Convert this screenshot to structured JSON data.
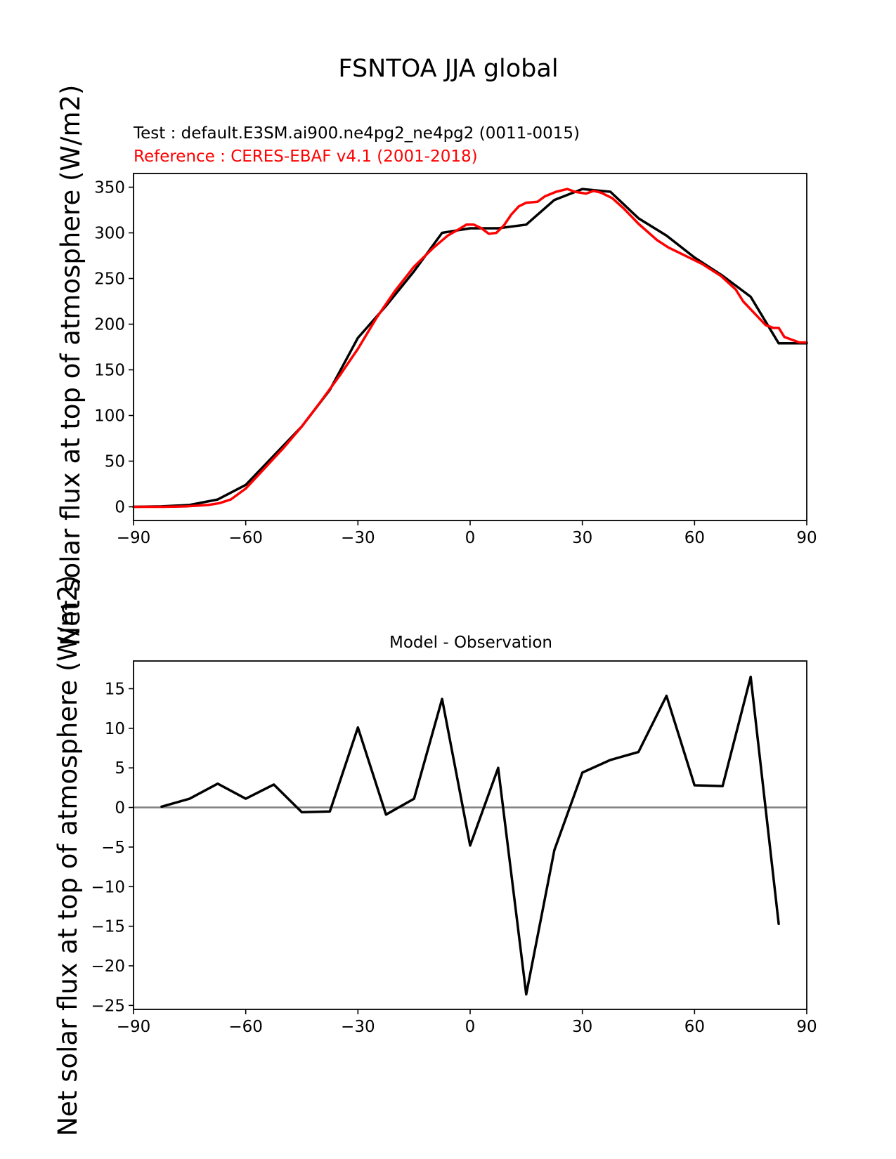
{
  "figure": {
    "title": "FSNTOA JJA global",
    "test_label": "Test : default.E3SM.ai900.ne4pg2_ne4pg2 (0011-0015)",
    "reference_label": "Reference : CERES-EBAF v4.1 (2001-2018)",
    "ylabel": "Net solar flux at top of atmosphere (W/m2)",
    "colors": {
      "test": "#000000",
      "reference": "#ff0000",
      "zero_line": "#808080"
    }
  },
  "chart_data": [
    {
      "type": "line",
      "title": "",
      "xlabel": "",
      "ylabel": "Net solar flux at top of atmosphere (W/m2)",
      "xlim": [
        -90,
        90
      ],
      "ylim": [
        -15,
        365
      ],
      "xticks": [
        "−90",
        "−60",
        "−30",
        "0",
        "30",
        "60",
        "90"
      ],
      "xtick_values": [
        -90,
        -60,
        -30,
        0,
        30,
        60,
        90
      ],
      "yticks": [
        "0",
        "50",
        "100",
        "150",
        "200",
        "250",
        "300",
        "350"
      ],
      "ytick_values": [
        0,
        50,
        100,
        150,
        200,
        250,
        300,
        350
      ],
      "series": [
        {
          "name": "Test : default.E3SM.ai900.ne4pg2_ne4pg2 (0011-0015)",
          "color": "#000000",
          "x": [
            -90,
            -82.5,
            -75,
            -67.5,
            -60,
            -52.5,
            -45,
            -37.5,
            -30,
            -22.5,
            -15,
            -7.5,
            0,
            7.5,
            15,
            22.5,
            30,
            37.5,
            45,
            52.5,
            60,
            67.5,
            75,
            82.5,
            90
          ],
          "y": [
            0,
            0.5,
            2,
            8,
            24,
            56,
            88,
            128,
            185,
            220,
            258,
            300,
            305,
            305,
            309,
            336,
            348,
            345,
            316,
            297,
            273,
            253,
            230,
            179,
            179
          ]
        },
        {
          "name": "Reference : CERES-EBAF v4.1 (2001-2018)",
          "color": "#ff0000",
          "x": [
            -90,
            -82,
            -76,
            -70,
            -67,
            -64,
            -60,
            -55,
            -50,
            -45,
            -40,
            -35,
            -30,
            -25,
            -20,
            -15,
            -10,
            -6,
            -3,
            -1,
            1,
            3,
            5,
            7,
            9,
            11,
            13,
            15,
            18,
            20,
            23,
            26,
            28,
            31,
            33,
            35,
            38,
            41,
            45,
            50,
            53,
            57,
            62,
            67,
            71,
            73,
            76,
            79,
            81,
            82.5,
            84,
            86,
            88,
            90
          ],
          "y": [
            0,
            0,
            0.5,
            2,
            4,
            8,
            20,
            42,
            64,
            88,
            115,
            143,
            173,
            207,
            237,
            263,
            283,
            297,
            304,
            309,
            309,
            305,
            299,
            300,
            308,
            320,
            329,
            333,
            334,
            340,
            345,
            348,
            345,
            343,
            346,
            344,
            338,
            327,
            310,
            292,
            284,
            276,
            266,
            253,
            238,
            225,
            212,
            199,
            196,
            196,
            186,
            183,
            180,
            180
          ]
        }
      ],
      "legend": "none"
    },
    {
      "type": "line",
      "title": "Model - Observation",
      "xlabel": "",
      "ylabel": "Net solar flux at top of atmosphere (W/m2)",
      "xlim": [
        -90,
        90
      ],
      "ylim": [
        -25.5,
        18.5
      ],
      "xticks": [
        "−90",
        "−60",
        "−30",
        "0",
        "30",
        "60",
        "90"
      ],
      "xtick_values": [
        -90,
        -60,
        -30,
        0,
        30,
        60,
        90
      ],
      "yticks": [
        "−25",
        "−20",
        "−15",
        "−10",
        "−5",
        "0",
        "5",
        "10",
        "15"
      ],
      "ytick_values": [
        -25,
        -20,
        -15,
        -10,
        -5,
        0,
        5,
        10,
        15
      ],
      "zero_line": true,
      "series": [
        {
          "name": "",
          "color": "#000000",
          "x": [
            -82.5,
            -75,
            -67.5,
            -60,
            -52.5,
            -45,
            -37.5,
            -30,
            -22.5,
            -15,
            -7.5,
            0,
            7.5,
            15,
            22.5,
            30,
            37.5,
            45,
            52.5,
            60,
            67.5,
            75,
            82.5
          ],
          "y": [
            0.1,
            1.1,
            3.0,
            1.1,
            2.9,
            -0.6,
            -0.5,
            10.1,
            -0.9,
            1.1,
            13.7,
            -4.8,
            5.0,
            -23.6,
            -5.4,
            4.4,
            6.0,
            7.0,
            14.1,
            2.8,
            2.7,
            16.5,
            -14.7
          ]
        }
      ],
      "legend": "none"
    }
  ]
}
